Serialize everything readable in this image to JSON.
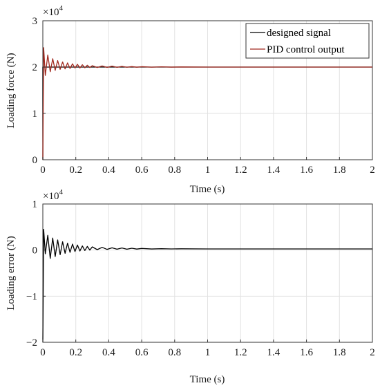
{
  "chart_data": [
    {
      "type": "line",
      "xlabel": "Time (s)",
      "ylabel": "Loading force (N)",
      "multiplier": "×10",
      "multiplier_exp": "4",
      "xlim": [
        0,
        2
      ],
      "ylim": [
        0,
        3
      ],
      "x_ticks": [
        "0",
        "0.2",
        "0.4",
        "0.6",
        "0.8",
        "1",
        "1.2",
        "1.4",
        "1.6",
        "1.8",
        "2"
      ],
      "y_ticks": [
        "0",
        "1",
        "2",
        "3"
      ],
      "grid": true,
      "legend_position": "top-right",
      "series": [
        {
          "name": "designed signal",
          "color": "#000000",
          "x": [
            0,
            0.0,
            2.0
          ],
          "y": [
            0,
            2.0,
            2.0
          ]
        },
        {
          "name": "PID control output",
          "color": "#a0281e",
          "x": [
            0,
            0.005,
            0.015,
            0.03,
            0.045,
            0.06,
            0.075,
            0.09,
            0.105,
            0.12,
            0.135,
            0.15,
            0.165,
            0.18,
            0.195,
            0.21,
            0.225,
            0.24,
            0.255,
            0.27,
            0.285,
            0.3,
            0.33,
            0.36,
            0.39,
            0.42,
            0.45,
            0.48,
            0.51,
            0.54,
            0.57,
            0.6,
            0.66,
            0.72,
            0.78,
            0.84,
            1.0,
            2.0
          ],
          "y": [
            0,
            2.42,
            1.82,
            2.26,
            1.9,
            2.18,
            1.93,
            2.14,
            1.95,
            2.11,
            1.96,
            2.09,
            1.97,
            2.07,
            1.98,
            2.06,
            1.98,
            2.05,
            1.985,
            2.04,
            1.99,
            2.03,
            1.99,
            2.025,
            1.993,
            2.02,
            1.995,
            2.015,
            1.996,
            2.01,
            1.997,
            2.008,
            1.998,
            2.005,
            1.999,
            2.003,
            2.0,
            2.0
          ]
        }
      ]
    },
    {
      "type": "line",
      "xlabel": "Time (s)",
      "ylabel": "Loading error (N)",
      "multiplier": "×10",
      "multiplier_exp": "4",
      "xlim": [
        0,
        2
      ],
      "ylim": [
        -2,
        1
      ],
      "x_ticks": [
        "0",
        "0.2",
        "0.4",
        "0.6",
        "0.8",
        "1",
        "1.2",
        "1.4",
        "1.6",
        "1.8",
        "2"
      ],
      "y_ticks": [
        "-2",
        "-1",
        "0",
        "1"
      ],
      "grid": true,
      "series": [
        {
          "color": "#000000",
          "x": [
            0,
            0.005,
            0.015,
            0.03,
            0.045,
            0.06,
            0.075,
            0.09,
            0.105,
            0.12,
            0.135,
            0.15,
            0.165,
            0.18,
            0.195,
            0.21,
            0.225,
            0.24,
            0.255,
            0.27,
            0.285,
            0.3,
            0.33,
            0.36,
            0.39,
            0.42,
            0.45,
            0.48,
            0.51,
            0.54,
            0.57,
            0.6,
            0.66,
            0.72,
            0.78,
            0.84,
            1.0,
            2.0
          ],
          "y": [
            -2.0,
            0.45,
            -0.08,
            0.32,
            -0.18,
            0.26,
            -0.14,
            0.22,
            -0.1,
            0.18,
            -0.07,
            0.15,
            -0.05,
            0.13,
            -0.03,
            0.11,
            -0.02,
            0.09,
            -0.01,
            0.08,
            0.0,
            0.07,
            0.01,
            0.06,
            0.015,
            0.05,
            0.02,
            0.045,
            0.02,
            0.04,
            0.022,
            0.035,
            0.024,
            0.03,
            0.025,
            0.028,
            0.025,
            0.025
          ]
        }
      ]
    }
  ]
}
